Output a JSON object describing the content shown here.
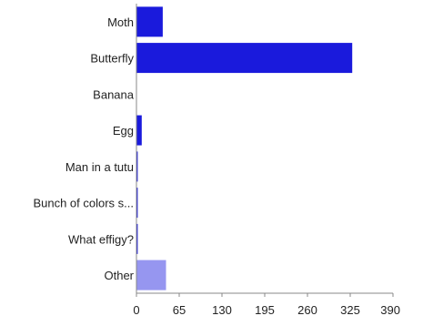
{
  "chart_data": {
    "type": "bar",
    "orientation": "horizontal",
    "title": "",
    "xlabel": "",
    "ylabel": "",
    "categories": [
      "Moth",
      "Butterfly",
      "Banana",
      "Egg",
      "Man in a tutu",
      "Bunch of colors s...",
      "What effigy?",
      "Other"
    ],
    "values": [
      40,
      328,
      0,
      8,
      2,
      2,
      2,
      45
    ],
    "bar_colors": [
      "#1a1adc",
      "#1a1adc",
      "#1a1adc",
      "#1a1adc",
      "#1a1adc",
      "#1a1adc",
      "#1a1adc",
      "#9696f0"
    ],
    "xlim": [
      0,
      390
    ],
    "xticks": [
      0,
      65,
      130,
      195,
      260,
      325,
      390
    ],
    "grid": false,
    "legend": "none"
  }
}
